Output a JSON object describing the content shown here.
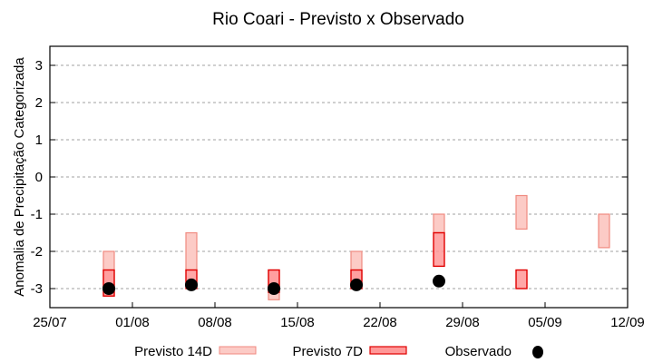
{
  "chart_data": {
    "type": "bar",
    "subtype": "floating-range-bars-with-points",
    "title": "Rio Coari - Previsto x Observado",
    "xlabel": "",
    "ylabel": "Anomalia de Precipitação Categorizada",
    "ylim": [
      -3.5,
      3.5
    ],
    "yticks": [
      3,
      2,
      1,
      0,
      -1,
      -2,
      -3
    ],
    "ytick_labels": [
      "3",
      "2",
      "1",
      "0",
      "-1",
      "-2",
      "-3"
    ],
    "x_range_days": [
      0,
      49
    ],
    "xticks_days": [
      0,
      7,
      14,
      21,
      28,
      35,
      42,
      49
    ],
    "xtick_labels": [
      "25/07",
      "01/08",
      "08/08",
      "15/08",
      "22/08",
      "29/08",
      "05/09",
      "12/09"
    ],
    "grid": {
      "y": true,
      "x": false,
      "style": "dotted"
    },
    "legend_position": "bottom",
    "colors": {
      "previsto_14d_fill": "#fccbc6",
      "previsto_14d_edge": "#f08a80",
      "previsto_7d_fill": "#ff9898",
      "previsto_7d_edge": "#e00000",
      "observado": "#000000",
      "grid": "#a0a0a0"
    },
    "categories": [
      "30/07",
      "06/08",
      "13/08",
      "20/08",
      "27/08",
      "03/09",
      "10/09"
    ],
    "category_days": [
      5,
      12,
      19,
      26,
      33,
      40,
      47
    ],
    "series": [
      {
        "name": "Previsto 14D",
        "type": "range",
        "ranges": [
          [
            -3.2,
            -2.0
          ],
          [
            -2.5,
            -1.5
          ],
          [
            -3.3,
            -2.5
          ],
          [
            -3.0,
            -2.0
          ],
          [
            -1.5,
            -1.0
          ],
          [
            -1.4,
            -0.5
          ],
          [
            -1.9,
            -1.0
          ]
        ]
      },
      {
        "name": "Previsto 7D",
        "type": "range",
        "ranges": [
          [
            -3.2,
            -2.5
          ],
          [
            -3.0,
            -2.5
          ],
          [
            -3.1,
            -2.5
          ],
          [
            -3.0,
            -2.5
          ],
          [
            -2.4,
            -1.5
          ],
          [
            -3.0,
            -2.5
          ],
          null
        ]
      },
      {
        "name": "Observado",
        "type": "scatter",
        "values": [
          -3.0,
          -2.9,
          -3.0,
          -2.9,
          -2.8,
          null,
          null
        ]
      }
    ],
    "legend": [
      "Previsto 14D",
      "Previsto 7D",
      "Observado"
    ]
  }
}
